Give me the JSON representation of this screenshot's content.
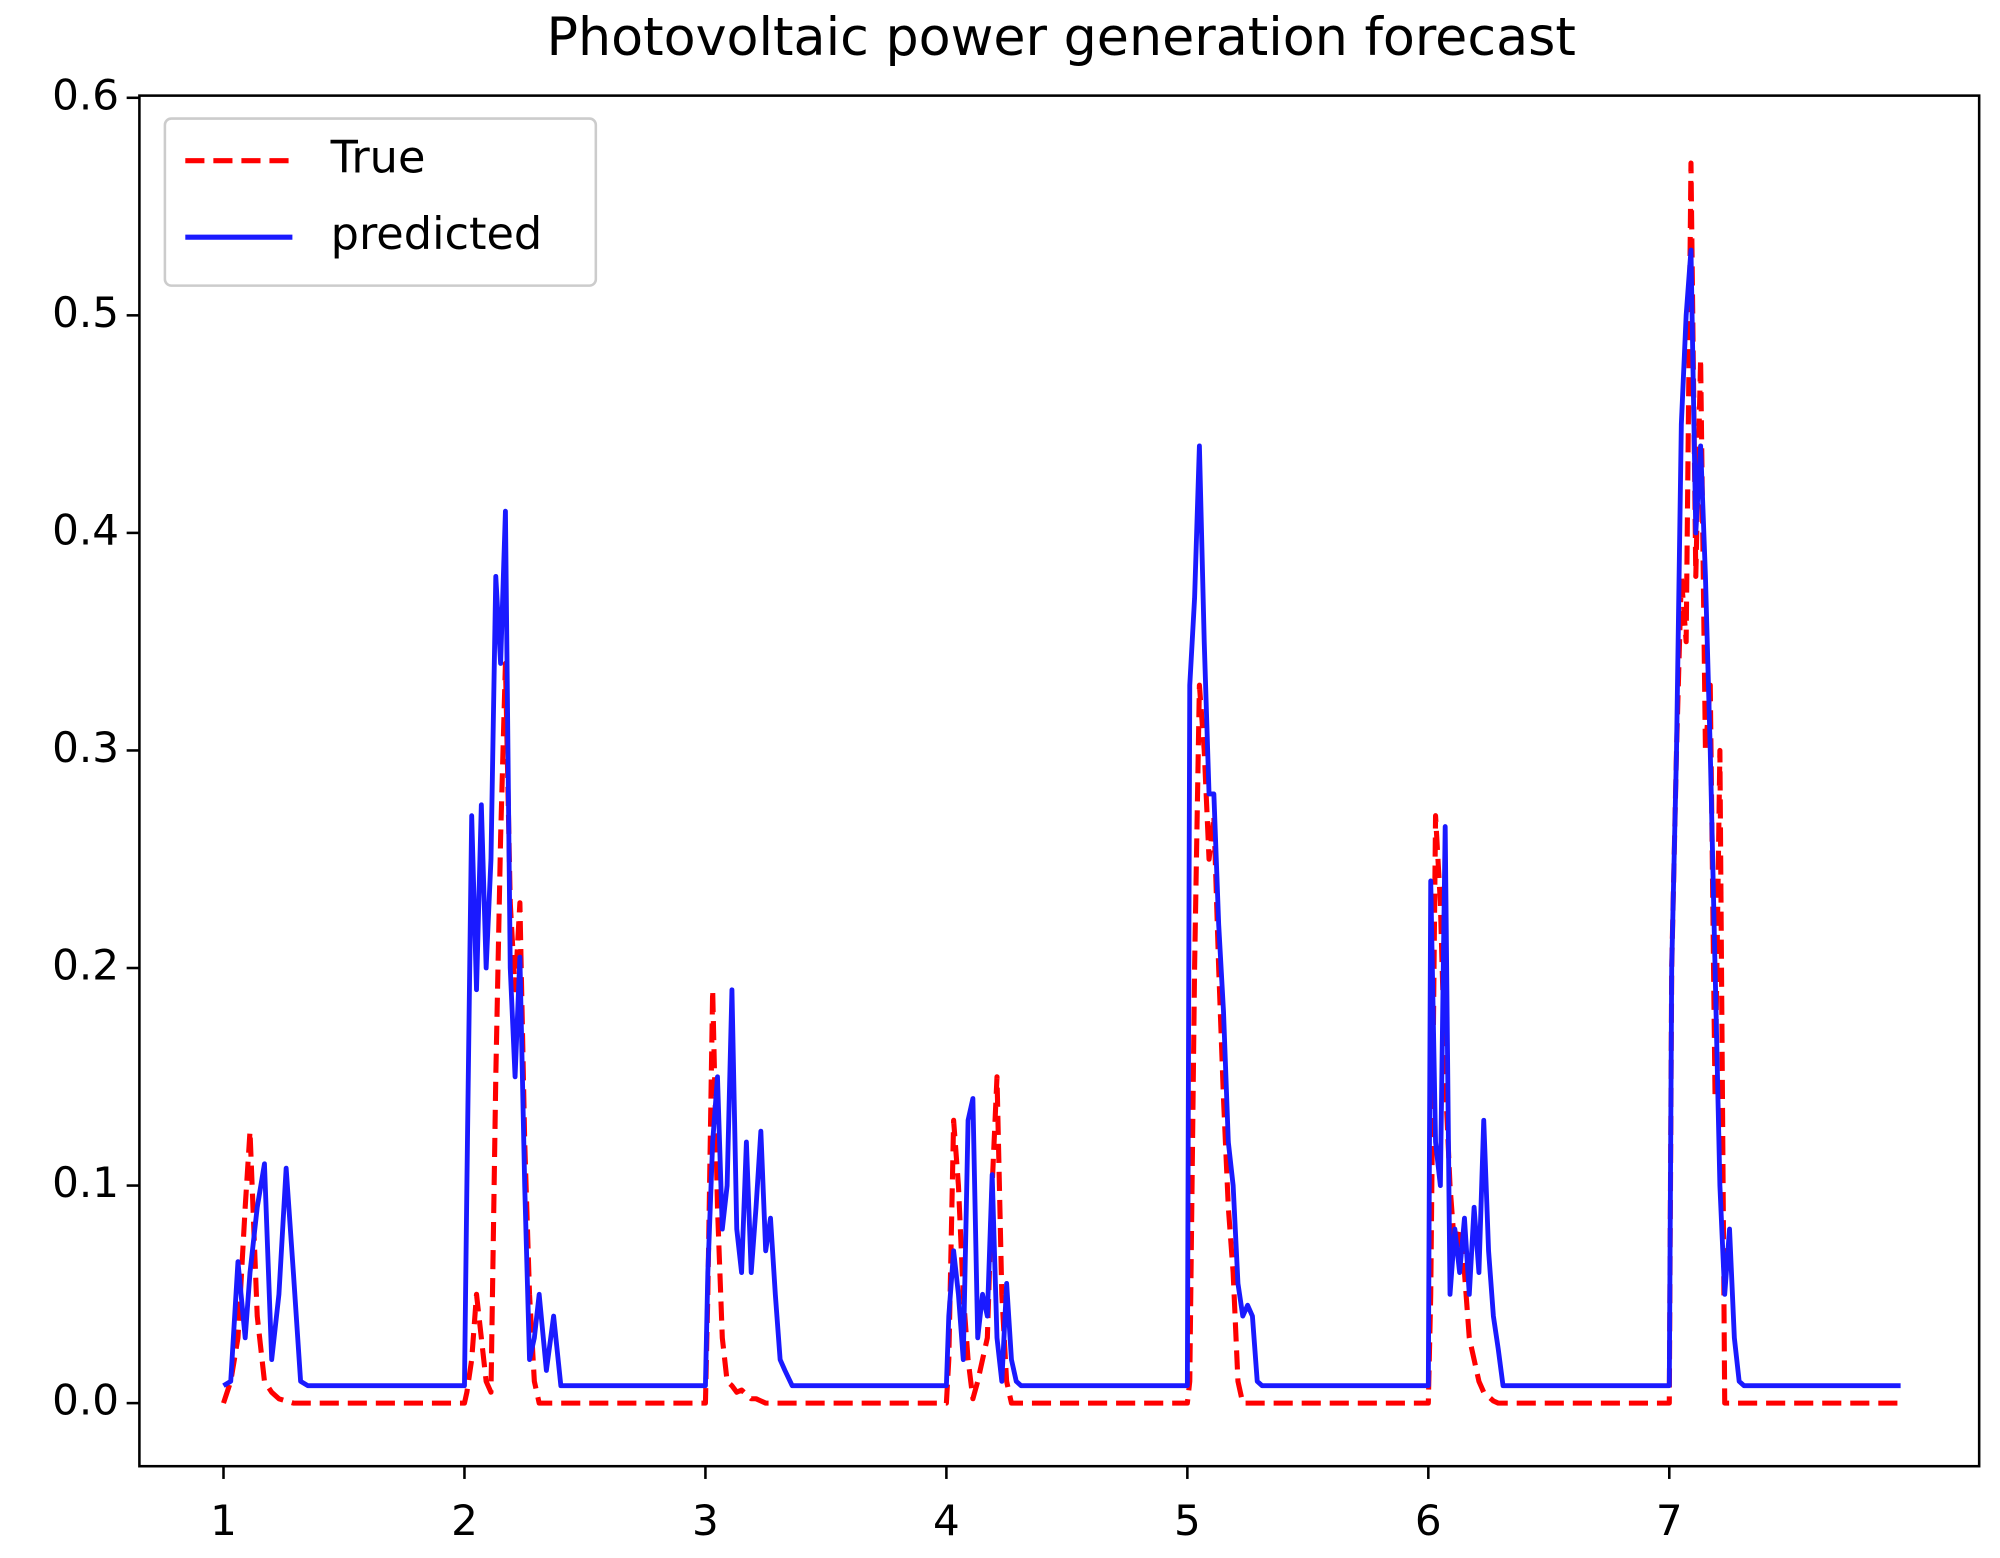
{
  "chart_data": {
    "type": "line",
    "title": "Photovoltaic power generation forecast",
    "x": [
      1.0,
      1.03,
      1.06,
      1.09,
      1.11,
      1.14,
      1.17,
      1.2,
      1.23,
      1.26,
      1.29,
      1.32,
      1.35,
      2.0,
      2.01,
      2.03,
      2.05,
      2.07,
      2.09,
      2.11,
      2.13,
      2.15,
      2.17,
      2.19,
      2.21,
      2.23,
      2.25,
      2.27,
      2.29,
      2.31,
      2.34,
      2.37,
      2.4,
      3.0,
      3.01,
      3.03,
      3.05,
      3.07,
      3.09,
      3.11,
      3.13,
      3.15,
      3.17,
      3.19,
      3.21,
      3.23,
      3.25,
      3.27,
      3.29,
      3.31,
      3.33,
      3.36,
      4.0,
      4.01,
      4.03,
      4.05,
      4.07,
      4.09,
      4.11,
      4.13,
      4.15,
      4.17,
      4.19,
      4.21,
      4.23,
      4.25,
      4.27,
      4.29,
      4.31,
      4.33,
      4.36,
      5.0,
      5.01,
      5.03,
      5.05,
      5.07,
      5.09,
      5.11,
      5.13,
      5.15,
      5.17,
      5.19,
      5.21,
      5.23,
      5.25,
      5.27,
      5.29,
      5.31,
      5.34,
      6.0,
      6.01,
      6.03,
      6.05,
      6.07,
      6.09,
      6.11,
      6.13,
      6.15,
      6.17,
      6.19,
      6.21,
      6.23,
      6.25,
      6.27,
      6.29,
      6.31,
      6.34,
      7.0,
      7.01,
      7.03,
      7.05,
      7.07,
      7.09,
      7.11,
      7.13,
      7.15,
      7.17,
      7.19,
      7.21,
      7.23,
      7.25,
      7.27,
      7.29,
      7.31,
      7.33,
      7.36,
      7.96
    ],
    "series": [
      {
        "name": "True",
        "color": "#ff0000",
        "dash": true,
        "values": [
          0,
          0.01,
          0.03,
          0.09,
          0.125,
          0.04,
          0.01,
          0.005,
          0.002,
          0.001,
          0,
          0,
          0,
          0,
          0.005,
          0.02,
          0.05,
          0.03,
          0.01,
          0.005,
          0.15,
          0.26,
          0.34,
          0.23,
          0.19,
          0.23,
          0.12,
          0.05,
          0.01,
          0,
          0,
          0,
          0,
          0,
          0.05,
          0.19,
          0.09,
          0.03,
          0.01,
          0.008,
          0.005,
          0.006,
          0.004,
          0.002,
          0.002,
          0.001,
          0,
          0,
          0,
          0,
          0,
          0,
          0,
          0.02,
          0.13,
          0.1,
          0.05,
          0.02,
          0.002,
          0.01,
          0.02,
          0.03,
          0.1,
          0.15,
          0.05,
          0.01,
          0,
          0,
          0,
          0,
          0,
          0,
          0.01,
          0.2,
          0.33,
          0.3,
          0.25,
          0.27,
          0.2,
          0.14,
          0.09,
          0.06,
          0.01,
          0,
          0,
          0,
          0,
          0,
          0,
          0,
          0.05,
          0.27,
          0.23,
          0.15,
          0.1,
          0.07,
          0.08,
          0.06,
          0.03,
          0.02,
          0.01,
          0.005,
          0.003,
          0.001,
          0,
          0,
          0,
          0,
          0.2,
          0.3,
          0.38,
          0.35,
          0.57,
          0.38,
          0.48,
          0.3,
          0.33,
          0.14,
          0.3,
          0,
          0,
          0,
          0,
          0,
          0,
          0,
          0
        ]
      },
      {
        "name": "predicted",
        "color": "#1a1aff",
        "dash": false,
        "values": [
          0.008,
          0.01,
          0.065,
          0.03,
          0.06,
          0.09,
          0.11,
          0.02,
          0.05,
          0.108,
          0.06,
          0.01,
          0.008,
          0.008,
          0.1,
          0.27,
          0.19,
          0.275,
          0.2,
          0.25,
          0.38,
          0.34,
          0.41,
          0.2,
          0.15,
          0.205,
          0.1,
          0.02,
          0.03,
          0.05,
          0.015,
          0.04,
          0.008,
          0.008,
          0.06,
          0.12,
          0.15,
          0.08,
          0.1,
          0.19,
          0.08,
          0.06,
          0.12,
          0.06,
          0.09,
          0.125,
          0.07,
          0.085,
          0.05,
          0.02,
          0.015,
          0.008,
          0.008,
          0.04,
          0.07,
          0.05,
          0.02,
          0.13,
          0.14,
          0.03,
          0.05,
          0.04,
          0.105,
          0.03,
          0.01,
          0.055,
          0.02,
          0.01,
          0.008,
          0.008,
          0.008,
          0.008,
          0.33,
          0.37,
          0.44,
          0.35,
          0.28,
          0.28,
          0.22,
          0.18,
          0.12,
          0.1,
          0.055,
          0.04,
          0.045,
          0.04,
          0.01,
          0.008,
          0.008,
          0.008,
          0.24,
          0.12,
          0.1,
          0.265,
          0.05,
          0.08,
          0.06,
          0.085,
          0.05,
          0.09,
          0.06,
          0.13,
          0.07,
          0.04,
          0.025,
          0.008,
          0.008,
          0.008,
          0.2,
          0.3,
          0.45,
          0.5,
          0.53,
          0.4,
          0.44,
          0.38,
          0.3,
          0.2,
          0.1,
          0.05,
          0.08,
          0.03,
          0.01,
          0.008,
          0.008,
          0.008,
          0.008
        ]
      }
    ],
    "xlim": [
      0.651,
      8.286
    ],
    "xticks": [
      1,
      2,
      3,
      4,
      5,
      6,
      7
    ],
    "ylim": [
      -0.029,
      0.601
    ],
    "yticks": [
      {
        "value": 0,
        "label": "0.0"
      },
      0.1,
      0.2,
      0.3,
      0.4,
      0.5,
      0.6
    ],
    "legend": "upper left"
  }
}
